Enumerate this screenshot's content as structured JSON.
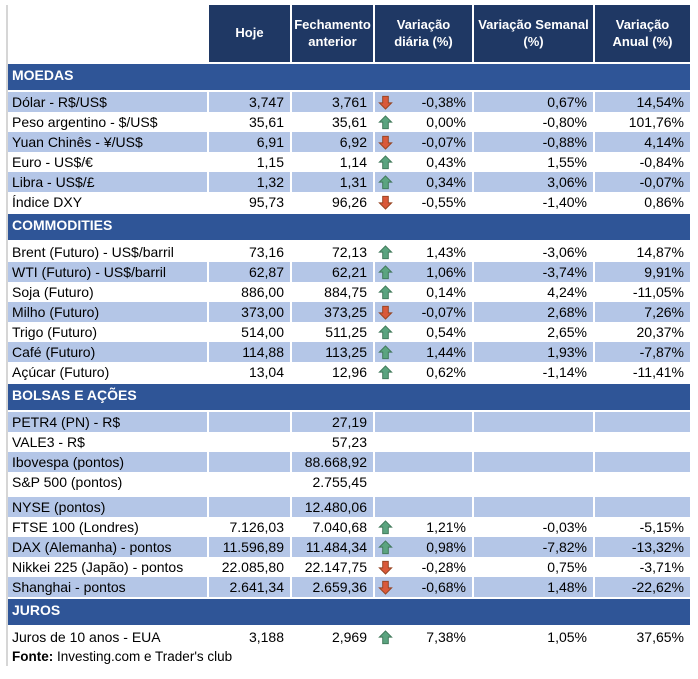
{
  "colors": {
    "header_bg": "#1F3864",
    "section_bg": "#2F5597",
    "row_shaded": "#B4C6E7",
    "arrow_up_fill": "#5BA47F",
    "arrow_up_border": "#3F7758",
    "arrow_down_fill": "#D9593A",
    "arrow_down_border": "#94421F"
  },
  "table": {
    "columns": [
      "Hoje",
      "Fechamento anterior",
      "Variação diária (%)",
      "Variação Semanal (%)",
      "Variação Anual (%)"
    ],
    "sections": [
      {
        "title": "MOEDAS",
        "rows": [
          {
            "label": "Dólar - R$/US$",
            "hoje": "3,747",
            "fechamento": "3,761",
            "arrow": "down",
            "diaria": "-0,38%",
            "semanal": "0,67%",
            "anual": "14,54%",
            "shaded": true
          },
          {
            "label": "Peso argentino - $/US$",
            "hoje": "35,61",
            "fechamento": "35,61",
            "arrow": "up",
            "diaria": "0,00%",
            "semanal": "-0,80%",
            "anual": "101,76%",
            "shaded": false
          },
          {
            "label": "Yuan Chinês - ¥/US$",
            "hoje": "6,91",
            "fechamento": "6,92",
            "arrow": "down",
            "diaria": "-0,07%",
            "semanal": "-0,88%",
            "anual": "4,14%",
            "shaded": true
          },
          {
            "label": "Euro - US$/€",
            "hoje": "1,15",
            "fechamento": "1,14",
            "arrow": "up",
            "diaria": "0,43%",
            "semanal": "1,55%",
            "anual": "-0,84%",
            "shaded": false
          },
          {
            "label": "Libra - US$/£",
            "hoje": "1,32",
            "fechamento": "1,31",
            "arrow": "up",
            "diaria": "0,34%",
            "semanal": "3,06%",
            "anual": "-0,07%",
            "shaded": true
          },
          {
            "label": "Índice DXY",
            "hoje": "95,73",
            "fechamento": "96,26",
            "arrow": "down",
            "diaria": "-0,55%",
            "semanal": "-1,40%",
            "anual": "0,86%",
            "shaded": false
          }
        ]
      },
      {
        "title": "COMMODITIES",
        "rows": [
          {
            "label": "Brent (Futuro) - US$/barril",
            "hoje": "73,16",
            "fechamento": "72,13",
            "arrow": "up",
            "diaria": "1,43%",
            "semanal": "-3,06%",
            "anual": "14,87%",
            "shaded": false
          },
          {
            "label": "WTI (Futuro) - US$/barril",
            "hoje": "62,87",
            "fechamento": "62,21",
            "arrow": "up",
            "diaria": "1,06%",
            "semanal": "-3,74%",
            "anual": "9,91%",
            "shaded": true
          },
          {
            "label": "Soja (Futuro)",
            "hoje": "886,00",
            "fechamento": "884,75",
            "arrow": "up",
            "diaria": "0,14%",
            "semanal": "4,24%",
            "anual": "-11,05%",
            "shaded": false
          },
          {
            "label": "Milho (Futuro)",
            "hoje": "373,00",
            "fechamento": "373,25",
            "arrow": "down",
            "diaria": "-0,07%",
            "semanal": "2,68%",
            "anual": "7,26%",
            "shaded": true
          },
          {
            "label": "Trigo (Futuro)",
            "hoje": "514,00",
            "fechamento": "511,25",
            "arrow": "up",
            "diaria": "0,54%",
            "semanal": "2,65%",
            "anual": "20,37%",
            "shaded": false
          },
          {
            "label": "Café (Futuro)",
            "hoje": "114,88",
            "fechamento": "113,25",
            "arrow": "up",
            "diaria": "1,44%",
            "semanal": "1,93%",
            "anual": "-7,87%",
            "shaded": true
          },
          {
            "label": "Açúcar (Futuro)",
            "hoje": "13,04",
            "fechamento": "12,96",
            "arrow": "up",
            "diaria": "0,62%",
            "semanal": "-1,14%",
            "anual": "-11,41%",
            "shaded": false
          }
        ]
      },
      {
        "title": "BOLSAS E AÇÕES",
        "rows": [
          {
            "label": "PETR4 (PN) - R$",
            "hoje": "",
            "fechamento": "27,19",
            "arrow": "",
            "diaria": "",
            "semanal": "",
            "anual": "",
            "shaded": true
          },
          {
            "label": "VALE3 - R$",
            "hoje": "",
            "fechamento": "57,23",
            "arrow": "",
            "diaria": "",
            "semanal": "",
            "anual": "",
            "shaded": false
          },
          {
            "label": "Ibovespa (pontos)",
            "hoje": "",
            "fechamento": "88.668,92",
            "arrow": "",
            "diaria": "",
            "semanal": "",
            "anual": "",
            "shaded": true
          },
          {
            "label": "S&P 500 (pontos)",
            "hoje": "",
            "fechamento": "2.755,45",
            "arrow": "",
            "diaria": "",
            "semanal": "",
            "anual": "",
            "shaded": false
          },
          {
            "label": "NYSE (pontos)",
            "hoje": "",
            "fechamento": "12.480,06",
            "arrow": "",
            "diaria": "",
            "semanal": "",
            "anual": "",
            "shaded": true,
            "spacer_before": true
          },
          {
            "label": "FTSE 100 (Londres)",
            "hoje": "7.126,03",
            "fechamento": "7.040,68",
            "arrow": "up",
            "diaria": "1,21%",
            "semanal": "-0,03%",
            "anual": "-5,15%",
            "shaded": false
          },
          {
            "label": "DAX (Alemanha) - pontos",
            "hoje": "11.596,89",
            "fechamento": "11.484,34",
            "arrow": "up",
            "diaria": "0,98%",
            "semanal": "-7,82%",
            "anual": "-13,32%",
            "shaded": true
          },
          {
            "label": "Nikkei 225 (Japão) - pontos",
            "hoje": "22.085,80",
            "fechamento": "22.147,75",
            "arrow": "down",
            "diaria": "-0,28%",
            "semanal": "0,75%",
            "anual": "-3,71%",
            "shaded": false
          },
          {
            "label": "Shanghai - pontos",
            "hoje": "2.641,34",
            "fechamento": "2.659,36",
            "arrow": "down",
            "diaria": "-0,68%",
            "semanal": "1,48%",
            "anual": "-22,62%",
            "shaded": true
          }
        ]
      },
      {
        "title": "JUROS",
        "rows": [
          {
            "label": "Juros de 10 anos - EUA",
            "hoje": "3,188",
            "fechamento": "2,969",
            "arrow": "up",
            "diaria": "7,38%",
            "semanal": "1,05%",
            "anual": "37,65%",
            "shaded": false
          }
        ]
      }
    ]
  },
  "footer": {
    "source_label": "Fonte:",
    "source_text": " Investing.com e Trader's club"
  }
}
